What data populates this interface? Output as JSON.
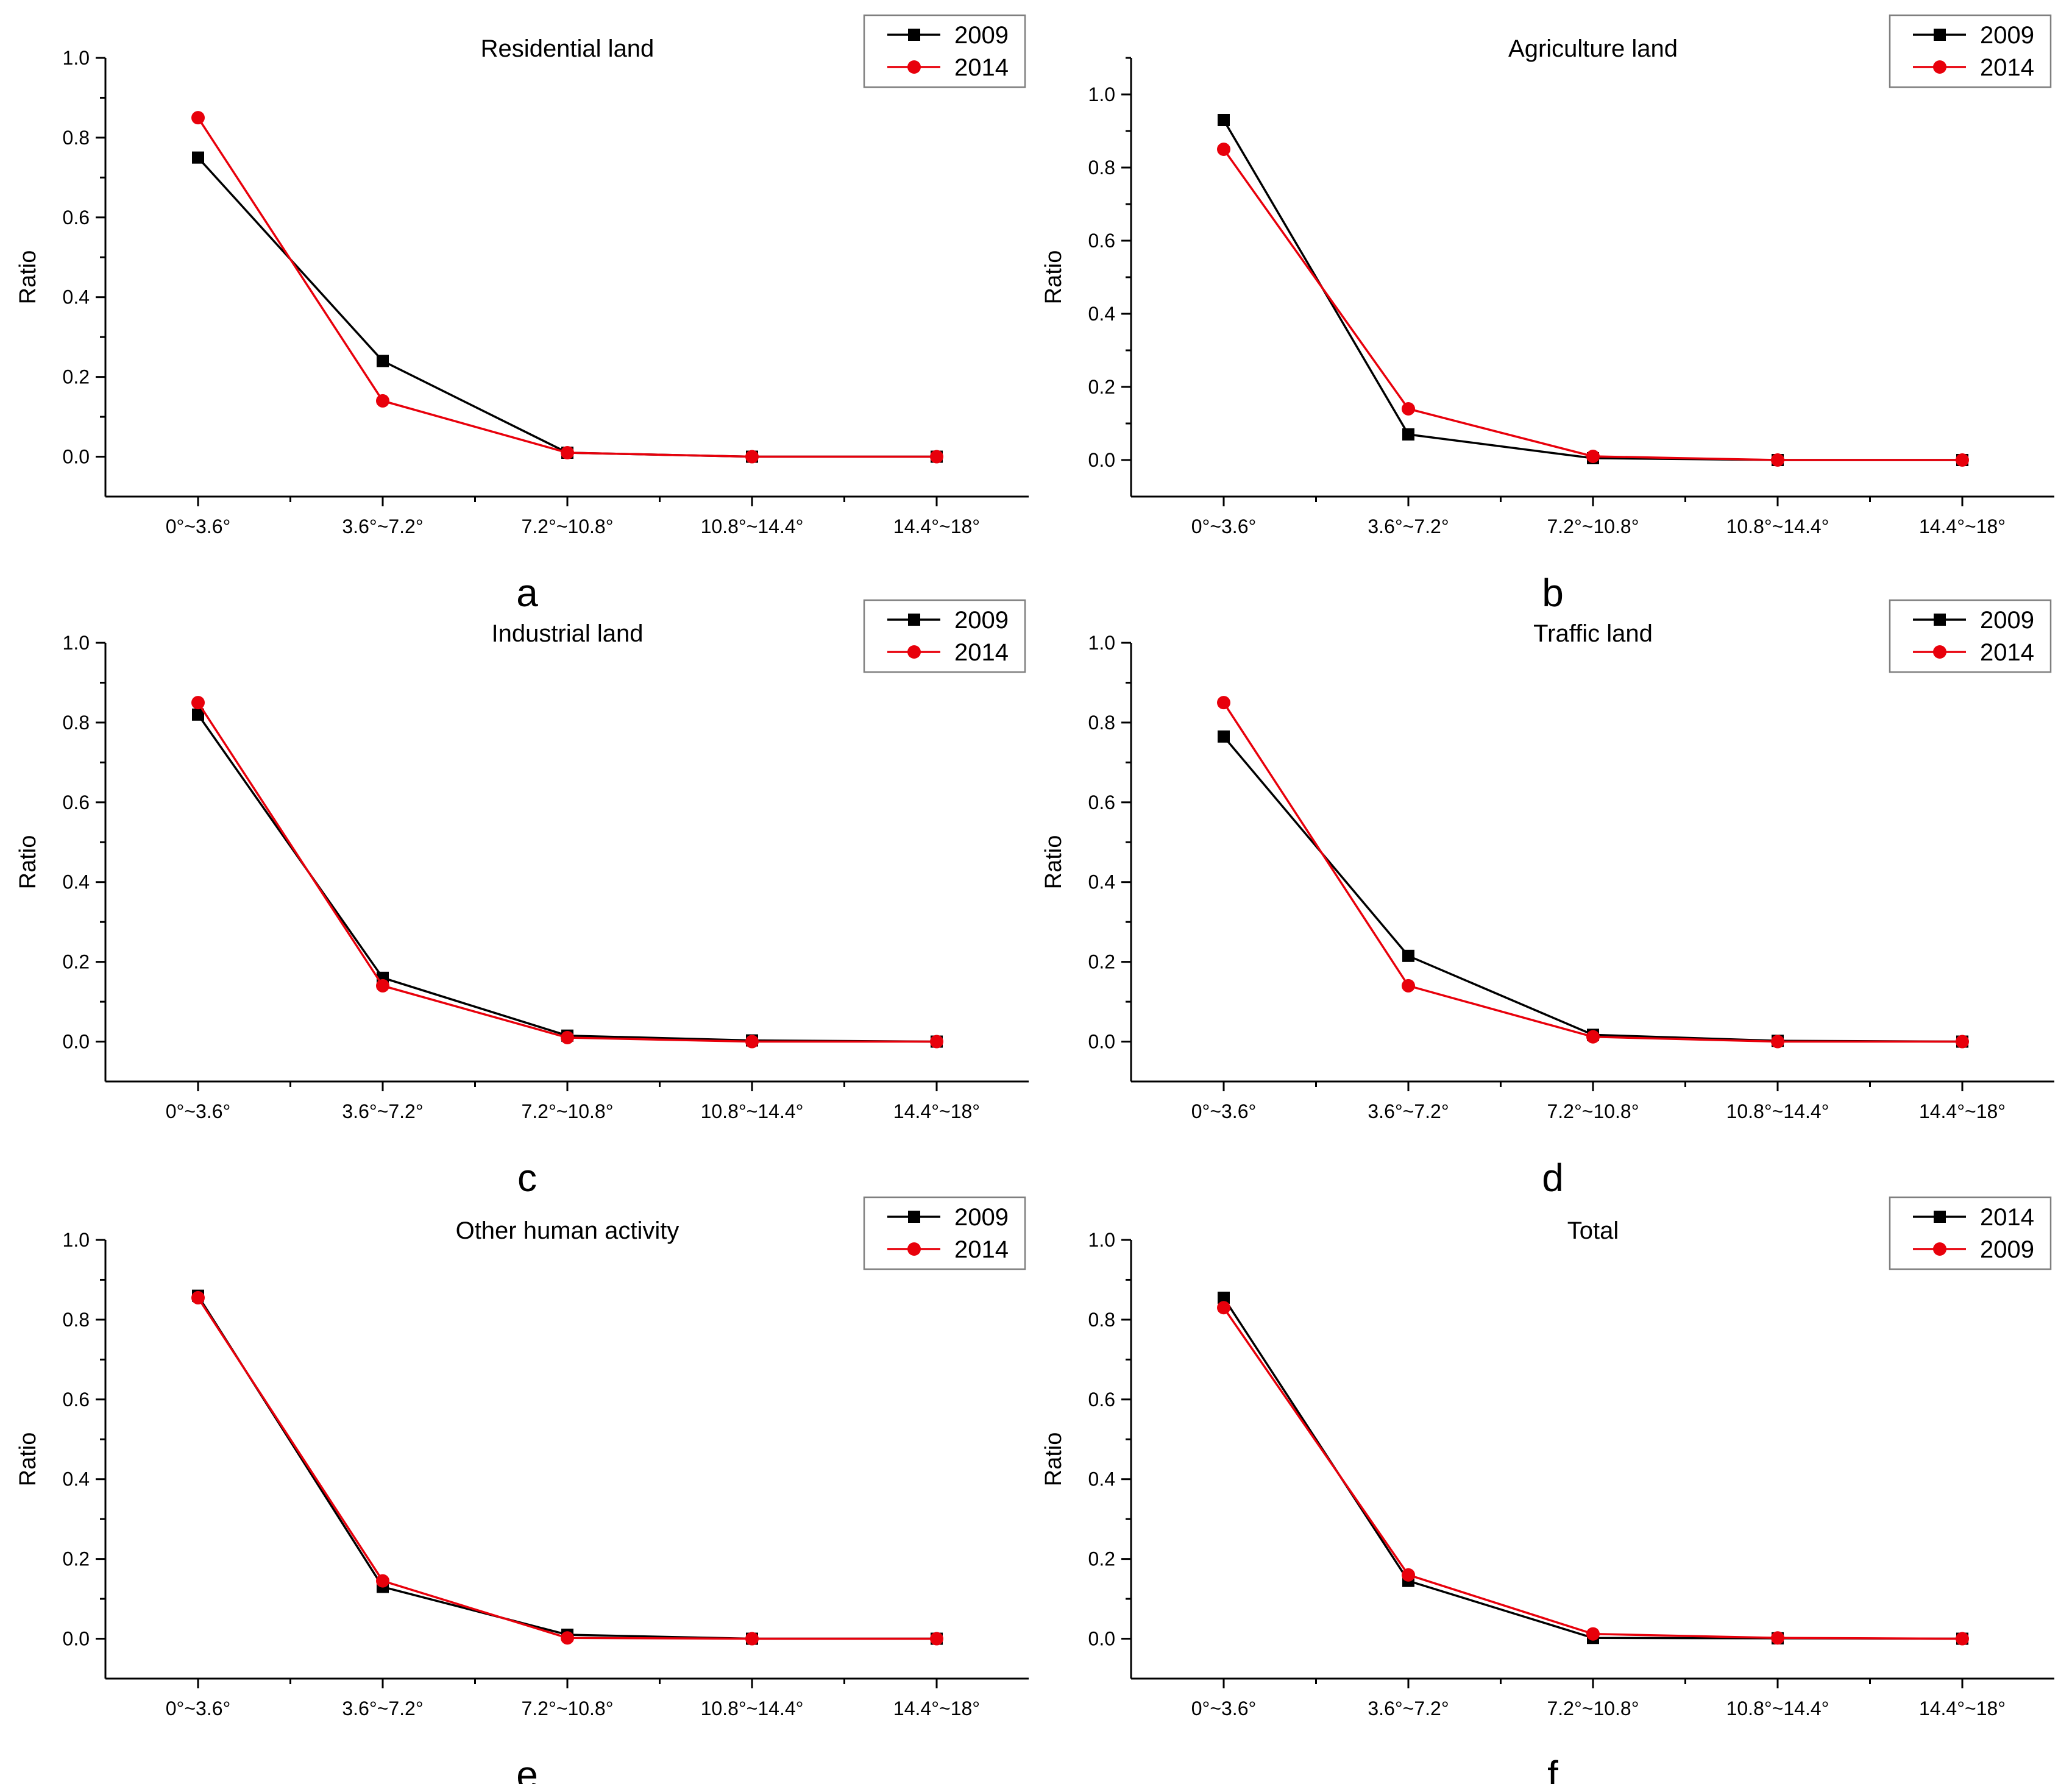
{
  "figure": {
    "panels": [
      {
        "id": "a",
        "letter": "a",
        "title": "Residential land",
        "col": 0,
        "row": 0
      },
      {
        "id": "b",
        "letter": "b",
        "title": "Agriculture land",
        "col": 1,
        "row": 0
      },
      {
        "id": "c",
        "letter": "c",
        "title": "Industrial land",
        "col": 0,
        "row": 1
      },
      {
        "id": "d",
        "letter": "d",
        "title": "Traffic land",
        "col": 1,
        "row": 1
      },
      {
        "id": "e",
        "letter": "e",
        "title": "Other human activity",
        "col": 0,
        "row": 2
      },
      {
        "id": "f",
        "letter": "f",
        "title": "Total",
        "col": 1,
        "row": 2
      }
    ]
  },
  "colors": {
    "black_series": "#000000",
    "red_series": "#e8000b"
  },
  "chart_data": [
    {
      "type": "line",
      "title": "Residential land",
      "categories": [
        "0°~3.6°",
        "3.6°~7.2°",
        "7.2°~10.8°",
        "10.8°~14.4°",
        "14.4°~18°"
      ],
      "xlabel": "",
      "ylabel": "Ratio",
      "ylim": [
        -0.1,
        1.0
      ],
      "yticks": [
        0.0,
        0.2,
        0.4,
        0.6,
        0.8,
        1.0
      ],
      "yticklabels": [
        "0.0",
        "0.2",
        "0.4",
        "0.6",
        "0.8",
        "1.0"
      ],
      "legend_position": "top-right",
      "series": [
        {
          "name": "2009",
          "marker": "square",
          "color": "#000000",
          "values": [
            0.75,
            0.24,
            0.01,
            0.0,
            0.0
          ]
        },
        {
          "name": "2014",
          "marker": "circle",
          "color": "#e8000b",
          "values": [
            0.85,
            0.14,
            0.01,
            0.0,
            0.0
          ]
        }
      ]
    },
    {
      "type": "line",
      "title": "Agriculture land",
      "categories": [
        "0°~3.6°",
        "3.6°~7.2°",
        "7.2°~10.8°",
        "10.8°~14.4°",
        "14.4°~18°"
      ],
      "xlabel": "",
      "ylabel": "Ratio",
      "ylim": [
        -0.1,
        1.1
      ],
      "yticks": [
        0.0,
        0.2,
        0.4,
        0.6,
        0.8,
        1.0
      ],
      "yticklabels": [
        "0.0",
        "0.2",
        "0.4",
        "0.6",
        "0.8",
        "1.0"
      ],
      "legend_position": "top-right",
      "series": [
        {
          "name": "2009",
          "marker": "square",
          "color": "#000000",
          "values": [
            0.93,
            0.07,
            0.005,
            0.0,
            0.0
          ]
        },
        {
          "name": "2014",
          "marker": "circle",
          "color": "#e8000b",
          "values": [
            0.85,
            0.14,
            0.01,
            0.0,
            0.0
          ]
        }
      ]
    },
    {
      "type": "line",
      "title": "Industrial land",
      "categories": [
        "0°~3.6°",
        "3.6°~7.2°",
        "7.2°~10.8°",
        "10.8°~14.4°",
        "14.4°~18°"
      ],
      "xlabel": "",
      "ylabel": "Ratio",
      "ylim": [
        -0.1,
        1.0
      ],
      "yticks": [
        0.0,
        0.2,
        0.4,
        0.6,
        0.8,
        1.0
      ],
      "yticklabels": [
        "0.0",
        "0.2",
        "0.4",
        "0.6",
        "0.8",
        "1.0"
      ],
      "legend_position": "top-right",
      "series": [
        {
          "name": "2009",
          "marker": "square",
          "color": "#000000",
          "values": [
            0.82,
            0.16,
            0.015,
            0.003,
            0.0
          ]
        },
        {
          "name": "2014",
          "marker": "circle",
          "color": "#e8000b",
          "values": [
            0.85,
            0.14,
            0.01,
            0.0,
            0.0
          ]
        }
      ]
    },
    {
      "type": "line",
      "title": "Traffic land",
      "categories": [
        "0°~3.6°",
        "3.6°~7.2°",
        "7.2°~10.8°",
        "10.8°~14.4°",
        "14.4°~18°"
      ],
      "xlabel": "",
      "ylabel": "Ratio",
      "ylim": [
        -0.1,
        1.0
      ],
      "yticks": [
        0.0,
        0.2,
        0.4,
        0.6,
        0.8,
        1.0
      ],
      "yticklabels": [
        "0.0",
        "0.2",
        "0.4",
        "0.6",
        "0.8",
        "1.0"
      ],
      "legend_position": "top-right",
      "series": [
        {
          "name": "2009",
          "marker": "square",
          "color": "#000000",
          "values": [
            0.765,
            0.215,
            0.017,
            0.002,
            0.0
          ]
        },
        {
          "name": "2014",
          "marker": "circle",
          "color": "#e8000b",
          "values": [
            0.85,
            0.14,
            0.012,
            0.0,
            0.0
          ]
        }
      ]
    },
    {
      "type": "line",
      "title": "Other human activity",
      "categories": [
        "0°~3.6°",
        "3.6°~7.2°",
        "7.2°~10.8°",
        "10.8°~14.4°",
        "14.4°~18°"
      ],
      "xlabel": "",
      "ylabel": "Ratio",
      "ylim": [
        -0.1,
        1.0
      ],
      "yticks": [
        0.0,
        0.2,
        0.4,
        0.6,
        0.8,
        1.0
      ],
      "yticklabels": [
        "0.0",
        "0.2",
        "0.4",
        "0.6",
        "0.8",
        "1.0"
      ],
      "legend_position": "top-right",
      "series": [
        {
          "name": "2009",
          "marker": "square",
          "color": "#000000",
          "values": [
            0.86,
            0.13,
            0.01,
            0.0,
            0.0
          ]
        },
        {
          "name": "2014",
          "marker": "circle",
          "color": "#e8000b",
          "values": [
            0.855,
            0.145,
            0.002,
            0.0,
            0.0
          ]
        }
      ]
    },
    {
      "type": "line",
      "title": "Total",
      "categories": [
        "0°~3.6°",
        "3.6°~7.2°",
        "7.2°~10.8°",
        "10.8°~14.4°",
        "14.4°~18°"
      ],
      "xlabel": "",
      "ylabel": "Ratio",
      "ylim": [
        -0.1,
        1.0
      ],
      "yticks": [
        0.0,
        0.2,
        0.4,
        0.6,
        0.8,
        1.0
      ],
      "yticklabels": [
        "0.0",
        "0.2",
        "0.4",
        "0.6",
        "0.8",
        "1.0"
      ],
      "legend_position": "top-right",
      "series": [
        {
          "name": "2014",
          "marker": "square",
          "color": "#000000",
          "values": [
            0.855,
            0.145,
            0.002,
            0.001,
            0.0
          ]
        },
        {
          "name": "2009",
          "marker": "circle",
          "color": "#e8000b",
          "values": [
            0.83,
            0.16,
            0.012,
            0.002,
            0.0
          ]
        }
      ]
    }
  ]
}
